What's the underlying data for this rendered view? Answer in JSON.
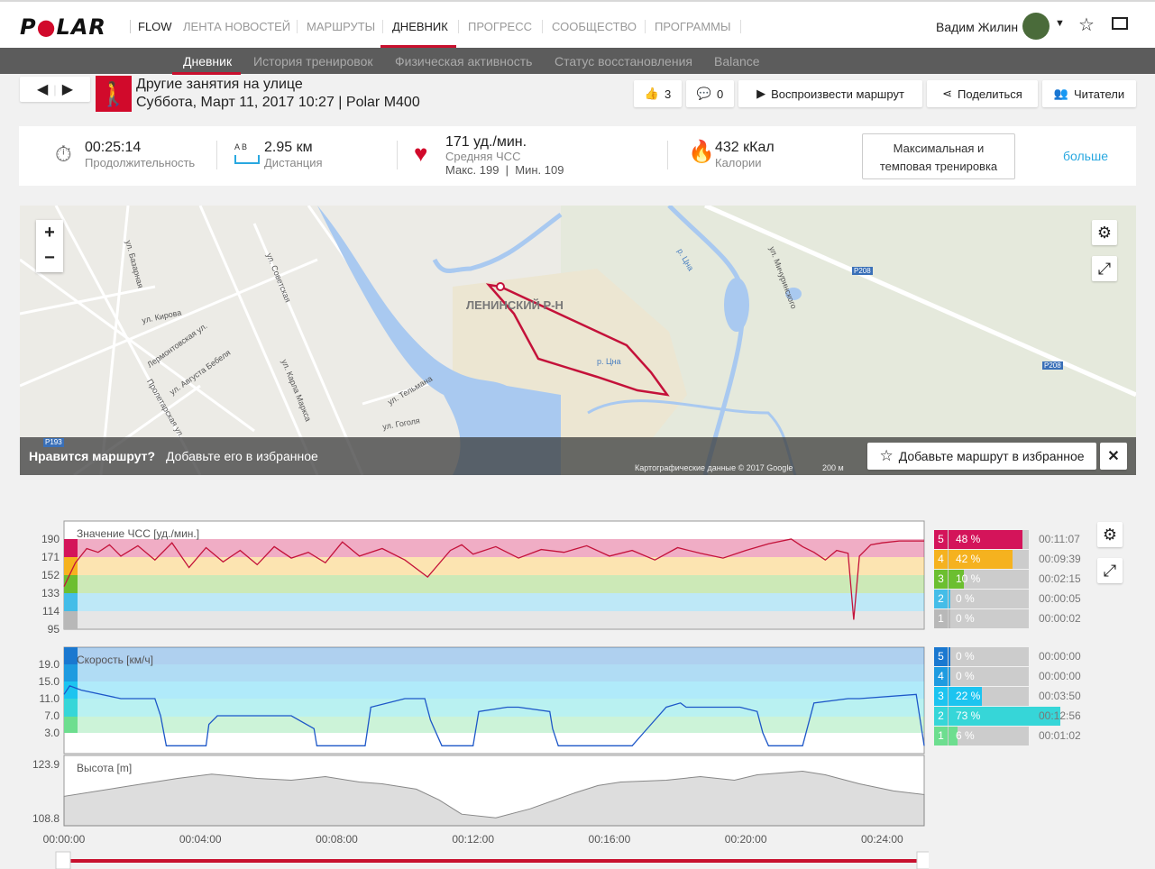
{
  "nav": {
    "logo": "POLAR",
    "flow": "FLOW",
    "items": [
      "ЛЕНТА НОВОСТЕЙ",
      "МАРШРУТЫ",
      "ДНЕВНИК",
      "ПРОГРЕСС",
      "СООБЩЕСТВО",
      "ПРОГРАММЫ"
    ],
    "user": "Вадим Жилин"
  },
  "subnav": [
    "Дневник",
    "История тренировок",
    "Физическая активность",
    "Статус восстановления",
    "Balance"
  ],
  "session": {
    "title": "Другие занятия на улице",
    "subtitle": "Суббота, Март 11, 2017 10:27 | Polar M400",
    "likes": "3",
    "comments": "0",
    "play": "Воспроизвести маршрут",
    "share": "Поделиться",
    "readers": "Читатели"
  },
  "summary": {
    "duration": "00:25:14",
    "duration_label": "Продолжительность",
    "distance": "2.95 км",
    "distance_label": "Дистанция",
    "ab": "A  B",
    "hr": "171 уд./мин.",
    "hr_label": "Средняя ЧСС",
    "hr_minmax": "Макс. 199  |  Мин. 109",
    "calories": "432 кКал",
    "calories_label": "Калории",
    "training": "Максимальная и темповая тренировка",
    "more": "больше"
  },
  "map": {
    "labels": [
      "ул. Базарная",
      "ул. Кирова",
      "Лермонтовская ул.",
      "ул. Августа Бебеля",
      "Пролетарская ул.",
      "ул. Советская",
      "ул. Карла Маркса",
      "ул. Тельмана",
      "ул. Гоголя",
      "ЛЕНИНСКИЙ Р-Н",
      "р. Цна",
      "р. Цна",
      "ул. Мичуринского",
      "P208",
      "P208",
      "P193"
    ],
    "promo_bold": "Нравится маршрут?",
    "promo": "Добавьте его в избранное",
    "fav_button": "Добавьте маршрут в избранное",
    "attribution": "Картографические данные © 2017 Google",
    "scale": "200 м",
    "zoom_in": "+",
    "zoom_out": "−"
  },
  "chart_data": {
    "type": "line",
    "x_ticks": [
      "00:00:00",
      "00:04:00",
      "00:08:00",
      "00:12:00",
      "00:16:00",
      "00:20:00",
      "00:24:00"
    ],
    "duration_s": 1514,
    "hr": {
      "label": "Значение ЧСС [уд./мин.]",
      "ticks": [
        "190",
        "171",
        "152",
        "133",
        "114",
        "95"
      ],
      "ylim": [
        95,
        190
      ],
      "t": [
        0,
        20,
        40,
        60,
        80,
        100,
        130,
        160,
        190,
        220,
        250,
        280,
        310,
        340,
        370,
        400,
        430,
        460,
        490,
        520,
        560,
        600,
        640,
        680,
        700,
        720,
        760,
        800,
        840,
        880,
        920,
        960,
        1000,
        1040,
        1080,
        1120,
        1160,
        1200,
        1240,
        1280,
        1300,
        1320,
        1340,
        1360,
        1380,
        1390,
        1400,
        1420,
        1440,
        1470,
        1514
      ],
      "v": [
        140,
        165,
        180,
        176,
        184,
        172,
        183,
        168,
        186,
        160,
        181,
        166,
        178,
        163,
        182,
        170,
        176,
        165,
        187,
        172,
        180,
        168,
        150,
        178,
        184,
        174,
        182,
        170,
        179,
        176,
        183,
        172,
        178,
        168,
        181,
        175,
        170,
        178,
        185,
        190,
        182,
        176,
        168,
        178,
        175,
        105,
        172,
        184,
        186,
        188,
        188
      ]
    },
    "speed": {
      "label": "Скорость [км/ч]",
      "ticks": [
        "19.0",
        "15.0",
        "11.0",
        "7.0",
        "3.0"
      ],
      "ylim": [
        -0.5,
        23
      ],
      "t": [
        0,
        10,
        30,
        100,
        160,
        170,
        180,
        250,
        255,
        270,
        400,
        440,
        445,
        510,
        530,
        540,
        600,
        635,
        645,
        665,
        700,
        720,
        730,
        780,
        800,
        800,
        855,
        860,
        870,
        900,
        1000,
        1020,
        1060,
        1085,
        1095,
        1110,
        1190,
        1220,
        1230,
        1240,
        1290,
        1300,
        1320,
        1380,
        1400,
        1500,
        1514
      ],
      "v": [
        12,
        14,
        13,
        11,
        11,
        7,
        0,
        0,
        5,
        7,
        7,
        4,
        0,
        0,
        0,
        9,
        11,
        11,
        6,
        0,
        0,
        0,
        8,
        9,
        9,
        9,
        8,
        4,
        0,
        0,
        0,
        3,
        9,
        10,
        9,
        9,
        9,
        8,
        3,
        0,
        0,
        0,
        10,
        11,
        11,
        12,
        0
      ]
    },
    "altitude": {
      "label": "Высота [m]",
      "ticks": [
        "123.9",
        "108.8"
      ],
      "ylim": [
        108.8,
        123.9
      ],
      "t": [
        0,
        120,
        200,
        260,
        340,
        400,
        460,
        520,
        560,
        620,
        660,
        700,
        760,
        820,
        900,
        940,
        980,
        1060,
        1120,
        1180,
        1220,
        1300,
        1340,
        1400,
        1460,
        1514
      ],
      "v": [
        115,
        118,
        120,
        121.2,
        120,
        119.5,
        120.5,
        119,
        118.5,
        117,
        114,
        110,
        109,
        111.5,
        116,
        118,
        119,
        119.5,
        120.5,
        119.5,
        121,
        122,
        121,
        118.5,
        116.5,
        115.5
      ]
    },
    "hr_zones": [
      {
        "zone": "5",
        "pct": 48,
        "label": "48 %",
        "time": "00:11:07",
        "color": "#d4145a"
      },
      {
        "zone": "4",
        "pct": 42,
        "label": "42 %",
        "time": "00:09:39",
        "color": "#f5b21f"
      },
      {
        "zone": "3",
        "pct": 10,
        "label": "10 %",
        "time": "00:02:15",
        "color": "#6cbf30"
      },
      {
        "zone": "2",
        "pct": 0,
        "label": "0 %",
        "time": "00:00:05",
        "color": "#44bde8"
      },
      {
        "zone": "1",
        "pct": 0,
        "label": "0 %",
        "time": "00:00:02",
        "color": "#b8b8b8"
      }
    ],
    "speed_zones": [
      {
        "zone": "5",
        "pct": 0,
        "label": "0 %",
        "time": "00:00:00",
        "color": "#1a78d0"
      },
      {
        "zone": "4",
        "pct": 0,
        "label": "0 %",
        "time": "00:00:00",
        "color": "#1e9be0"
      },
      {
        "zone": "3",
        "pct": 22,
        "label": "22 %",
        "time": "00:03:50",
        "color": "#1cc4f0"
      },
      {
        "zone": "2",
        "pct": 73,
        "label": "73 %",
        "time": "00:12:56",
        "color": "#36d6d8"
      },
      {
        "zone": "1",
        "pct": 6,
        "label": "6 %",
        "time": "00:01:02",
        "color": "#6dde8f"
      }
    ]
  }
}
